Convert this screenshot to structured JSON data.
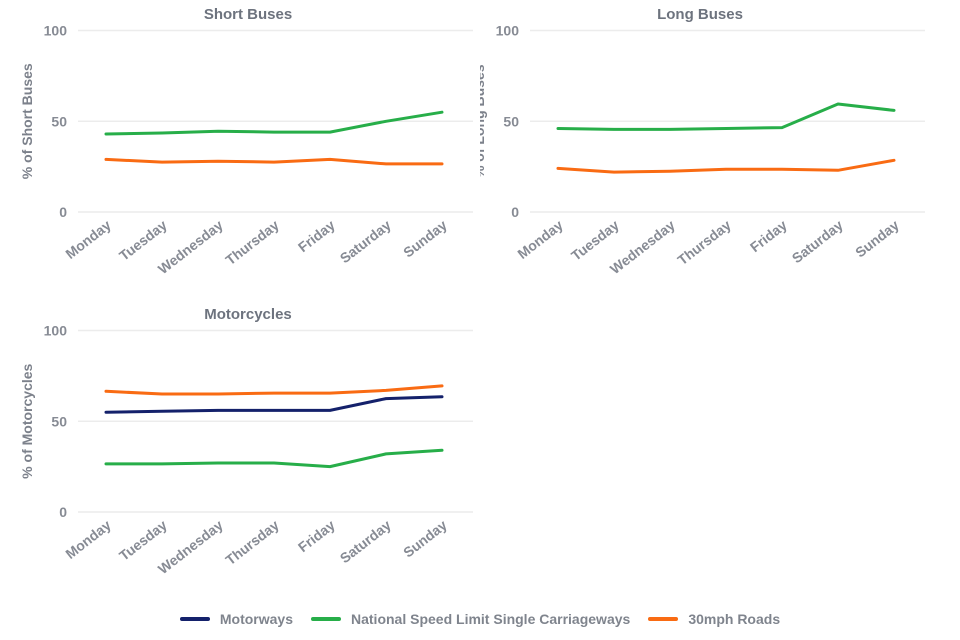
{
  "colors": {
    "motorways": "#14216b",
    "nsl_single_carriageways": "#27ae49",
    "thirty_mph_roads": "#f96b13",
    "grid": "#ececec",
    "tick_text": "#878b94",
    "title_text": "#6d737e",
    "axis_label_text": "#7c818b"
  },
  "legend": {
    "items": [
      {
        "label": "Motorways",
        "series": "motorways"
      },
      {
        "label": "National Speed Limit Single Carriageways",
        "series": "nsl_single_carriageways"
      },
      {
        "label": "30mph Roads",
        "series": "thirty_mph_roads"
      }
    ]
  },
  "chart_data": [
    {
      "type": "line",
      "title": "Short Buses",
      "ylabel": "% of Short Buses",
      "xlabel": "",
      "categories": [
        "Monday",
        "Tuesday",
        "Wednesday",
        "Thursday",
        "Friday",
        "Saturday",
        "Sunday"
      ],
      "ylim": [
        0,
        100
      ],
      "yticks": [
        0,
        50,
        100
      ],
      "grid": true,
      "legend_position": "bottom-shared",
      "series": [
        {
          "name": "National Speed Limit Single Carriageways",
          "color": "nsl_single_carriageways",
          "values": [
            43,
            43.5,
            44.5,
            44,
            44,
            50,
            55
          ]
        },
        {
          "name": "30mph Roads",
          "color": "thirty_mph_roads",
          "values": [
            29,
            27.5,
            28,
            27.5,
            29,
            26.5,
            26.5
          ]
        }
      ]
    },
    {
      "type": "line",
      "title": "Long Buses",
      "ylabel": "% of Long Buses",
      "xlabel": "",
      "categories": [
        "Monday",
        "Tuesday",
        "Wednesday",
        "Thursday",
        "Friday",
        "Saturday",
        "Sunday"
      ],
      "ylim": [
        0,
        100
      ],
      "yticks": [
        0,
        50,
        100
      ],
      "grid": true,
      "legend_position": "bottom-shared",
      "series": [
        {
          "name": "National Speed Limit Single Carriageways",
          "color": "nsl_single_carriageways",
          "values": [
            46,
            45.5,
            45.5,
            46,
            46.5,
            59.5,
            56
          ]
        },
        {
          "name": "30mph Roads",
          "color": "thirty_mph_roads",
          "values": [
            24,
            22,
            22.5,
            23.5,
            23.5,
            23,
            28.5
          ]
        }
      ]
    },
    {
      "type": "line",
      "title": "Motorcycles",
      "ylabel": "% of Motorcycles",
      "xlabel": "",
      "categories": [
        "Monday",
        "Tuesday",
        "Wednesday",
        "Thursday",
        "Friday",
        "Saturday",
        "Sunday"
      ],
      "ylim": [
        0,
        100
      ],
      "yticks": [
        0,
        50,
        100
      ],
      "grid": true,
      "legend_position": "bottom-shared",
      "series": [
        {
          "name": "Motorways",
          "color": "motorways",
          "values": [
            55,
            55.5,
            56,
            56,
            56,
            62.5,
            63.5
          ]
        },
        {
          "name": "National Speed Limit Single Carriageways",
          "color": "nsl_single_carriageways",
          "values": [
            26.5,
            26.5,
            27,
            27,
            25,
            32,
            34
          ]
        },
        {
          "name": "30mph Roads",
          "color": "thirty_mph_roads",
          "values": [
            66.5,
            65,
            65,
            65.5,
            65.5,
            67,
            69.5
          ]
        }
      ]
    }
  ]
}
